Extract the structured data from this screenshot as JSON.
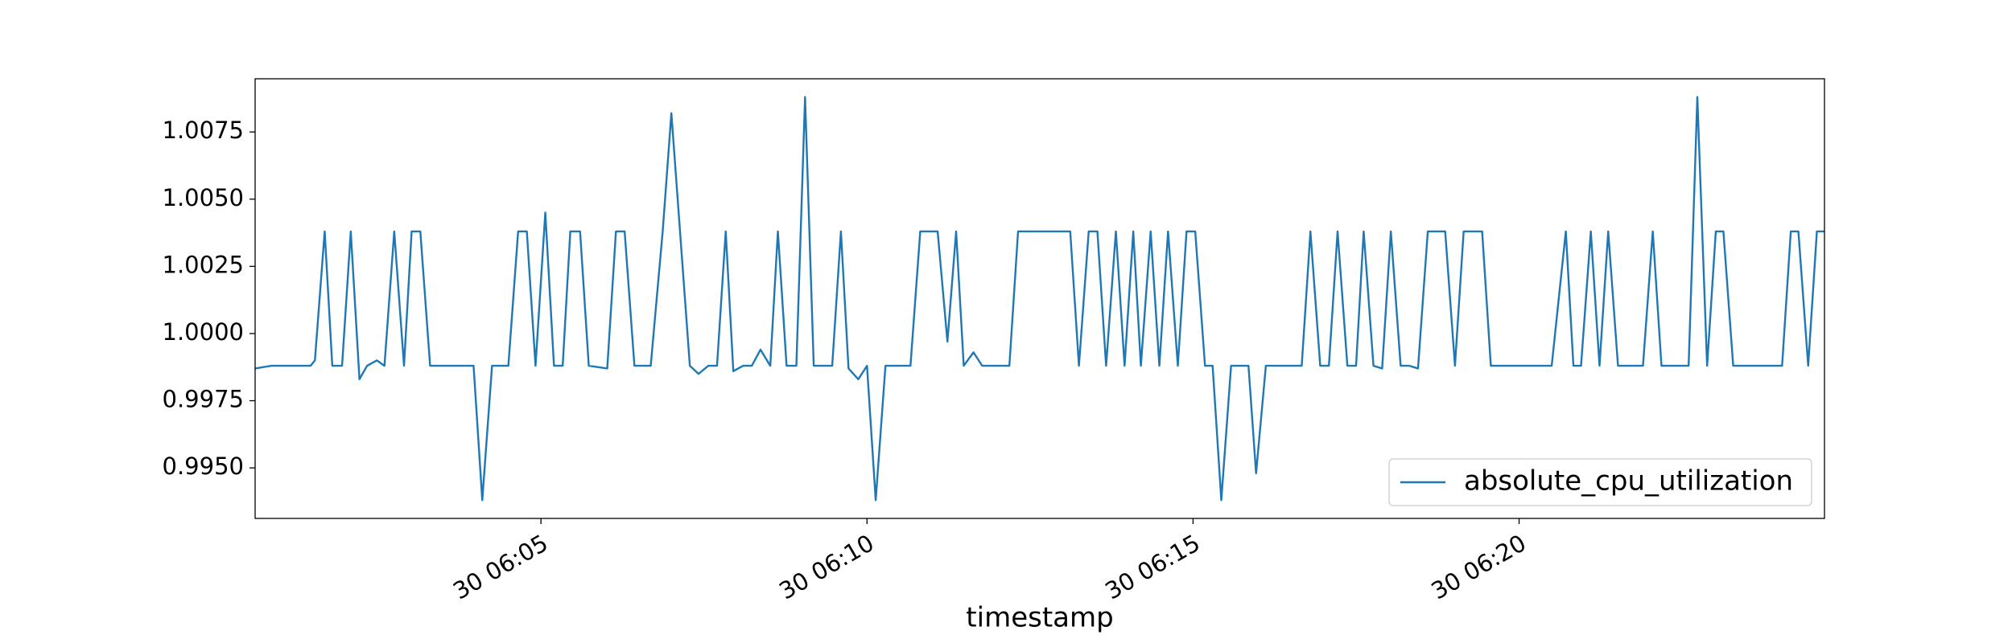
{
  "chart_data": {
    "type": "line",
    "x_label": "timestamp",
    "x": [
      "30 06:00:37",
      "30 06:00:52",
      "30 06:01:28",
      "30 06:01:32",
      "30 06:01:41",
      "30 06:01:48",
      "30 06:01:57",
      "30 06:02:05",
      "30 06:02:13",
      "30 06:02:20",
      "30 06:02:29",
      "30 06:02:36",
      "30 06:02:45",
      "30 06:02:54",
      "30 06:03:01",
      "30 06:03:09",
      "30 06:03:18",
      "30 06:03:58",
      "30 06:04:06",
      "30 06:04:15",
      "30 06:04:30",
      "30 06:04:39",
      "30 06:04:47",
      "30 06:04:55",
      "30 06:05:04",
      "30 06:05:12",
      "30 06:05:20",
      "30 06:05:27",
      "30 06:05:36",
      "30 06:05:44",
      "30 06:06:01",
      "30 06:06:09",
      "30 06:06:17",
      "30 06:06:26",
      "30 06:06:41",
      "30 06:06:52",
      "30 06:07:00",
      "30 06:07:17",
      "30 06:07:25",
      "30 06:07:34",
      "30 06:07:42",
      "30 06:07:50",
      "30 06:07:57",
      "30 06:08:06",
      "30 06:08:14",
      "30 06:08:22",
      "30 06:08:31",
      "30 06:08:38",
      "30 06:08:46",
      "30 06:08:55",
      "30 06:09:03",
      "30 06:09:11",
      "30 06:09:28",
      "30 06:09:36",
      "30 06:09:43",
      "30 06:09:52",
      "30 06:10:00",
      "30 06:10:08",
      "30 06:10:17",
      "30 06:10:40",
      "30 06:10:49",
      "30 06:11:05",
      "30 06:11:14",
      "30 06:11:22",
      "30 06:11:29",
      "30 06:11:38",
      "30 06:11:46",
      "30 06:12:11",
      "30 06:12:19",
      "30 06:12:35",
      "30 06:12:42",
      "30 06:13:07",
      "30 06:13:15",
      "30 06:13:24",
      "30 06:13:32",
      "30 06:13:40",
      "30 06:13:49",
      "30 06:13:57",
      "30 06:14:05",
      "30 06:14:12",
      "30 06:14:21",
      "30 06:14:29",
      "30 06:14:37",
      "30 06:14:46",
      "30 06:14:54",
      "30 06:15:02",
      "30 06:15:11",
      "30 06:15:18",
      "30 06:15:26",
      "30 06:15:35",
      "30 06:15:51",
      "30 06:15:58",
      "30 06:16:07",
      "30 06:16:15",
      "30 06:16:40",
      "30 06:16:48",
      "30 06:16:57",
      "30 06:17:05",
      "30 06:17:13",
      "30 06:17:22",
      "30 06:17:30",
      "30 06:17:37",
      "30 06:17:46",
      "30 06:17:54",
      "30 06:18:02",
      "30 06:18:11",
      "30 06:18:19",
      "30 06:18:27",
      "30 06:18:36",
      "30 06:18:52",
      "30 06:19:01",
      "30 06:19:09",
      "30 06:19:26",
      "30 06:19:34",
      "30 06:20:30",
      "30 06:20:43",
      "30 06:20:50",
      "30 06:20:57",
      "30 06:21:06",
      "30 06:21:14",
      "30 06:21:22",
      "30 06:21:31",
      "30 06:21:54",
      "30 06:22:03",
      "30 06:22:11",
      "30 06:22:28",
      "30 06:22:36",
      "30 06:22:44",
      "30 06:22:53",
      "30 06:23:01",
      "30 06:23:08",
      "30 06:23:17",
      "30 06:24:02",
      "30 06:24:10",
      "30 06:24:17",
      "30 06:24:26",
      "30 06:24:34",
      "30 06:24:41"
    ],
    "series": [
      {
        "name": "absolute_cpu_utilization",
        "color": "#1f77b4",
        "values": [
          0.9987,
          0.9988,
          0.9988,
          0.999,
          1.0038,
          0.9988,
          0.9988,
          1.0038,
          0.9983,
          0.9988,
          0.999,
          0.9988,
          1.0038,
          0.9988,
          1.0038,
          1.0038,
          0.9988,
          0.9988,
          0.9938,
          0.9988,
          0.9988,
          1.0038,
          1.0038,
          0.9988,
          1.0045,
          0.9988,
          0.9988,
          1.0038,
          1.0038,
          0.9988,
          0.9987,
          1.0038,
          1.0038,
          0.9988,
          0.9988,
          1.0038,
          1.0082,
          0.9988,
          0.9985,
          0.9988,
          0.9988,
          1.0038,
          0.9986,
          0.9988,
          0.9988,
          0.9994,
          0.9988,
          1.0038,
          0.9988,
          0.9988,
          1.0088,
          0.9988,
          0.9988,
          1.0038,
          0.9987,
          0.9983,
          0.9988,
          0.9938,
          0.9988,
          0.9988,
          1.0038,
          1.0038,
          0.9997,
          1.0038,
          0.9988,
          0.9993,
          0.9988,
          0.9988,
          1.0038,
          1.0038,
          1.0038,
          1.0038,
          0.9988,
          1.0038,
          1.0038,
          0.9988,
          1.0038,
          0.9988,
          1.0038,
          0.9988,
          1.0038,
          0.9988,
          1.0038,
          0.9988,
          1.0038,
          1.0038,
          0.9988,
          0.9988,
          0.9938,
          0.9988,
          0.9988,
          0.9948,
          0.9988,
          0.9988,
          0.9988,
          1.0038,
          0.9988,
          0.9988,
          1.0038,
          0.9988,
          0.9988,
          1.0038,
          0.9988,
          0.9987,
          1.0038,
          0.9988,
          0.9988,
          0.9987,
          1.0038,
          1.0038,
          0.9988,
          1.0038,
          1.0038,
          0.9988,
          0.9988,
          1.0038,
          0.9988,
          0.9988,
          1.0038,
          0.9988,
          1.0038,
          0.9988,
          0.9988,
          1.0038,
          0.9988,
          0.9988,
          0.9988,
          1.0088,
          0.9988,
          1.0038,
          1.0038,
          0.9988,
          0.9988,
          1.0038,
          1.0038,
          0.9988,
          1.0038,
          1.0038
        ]
      }
    ],
    "xlim": [
      "30 06:00:37",
      "30 06:24:41"
    ],
    "xticks": [
      {
        "value": "30 06:05:00",
        "label": "30 06:05"
      },
      {
        "value": "30 06:10:00",
        "label": "30 06:10"
      },
      {
        "value": "30 06:15:00",
        "label": "30 06:15"
      },
      {
        "value": "30 06:20:00",
        "label": "30 06:20"
      }
    ],
    "ylim": [
      0.99312,
      1.00948
    ],
    "yticks": [
      {
        "value": 0.995,
        "label": "0.9950"
      },
      0.9975,
      {
        "value": 1.0,
        "label": "1.0000"
      },
      1.0025,
      {
        "value": 1.005,
        "label": "1.0050"
      },
      1.0075
    ],
    "legend": "lower right",
    "grid": false
  }
}
